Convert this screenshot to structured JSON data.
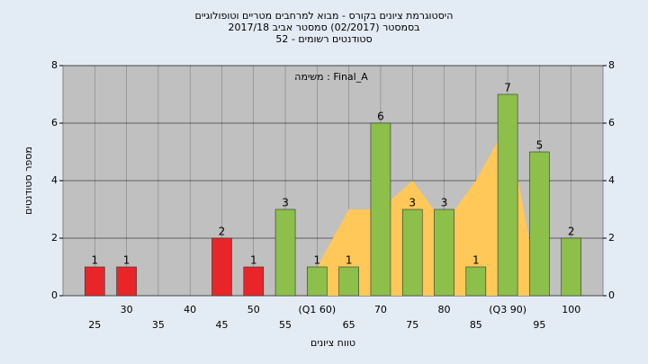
{
  "chart_data": {
    "type": "bar",
    "title": [
      "היסטוגרמת ציונים בקורס - מבוא למרחבים מטריים וטופולוגיים",
      "בסמסטר  (02/2017)  סמסטר אביב 2017/18",
      "סטודנטים רשומים - 52"
    ],
    "annotation": "משימה : Final_A",
    "x_label": "טווח ציונים",
    "y_label": "מספר סטודנטים",
    "categories": [
      "25",
      "30",
      "35",
      "40",
      "45",
      "50",
      "55",
      "(Q1 60)",
      "65",
      "70",
      "75",
      "80",
      "85",
      "(Q3 90)",
      "95",
      "100"
    ],
    "values": [
      1,
      1,
      0,
      0,
      2,
      1,
      3,
      1,
      1,
      6,
      3,
      3,
      1,
      7,
      5,
      2
    ],
    "colors": [
      "#e8262a",
      "#e8262a",
      "#e8262a",
      "#e8262a",
      "#e8262a",
      "#e8262a",
      "#8cc04a",
      "#8cc04a",
      "#8cc04a",
      "#8cc04a",
      "#8cc04a",
      "#8cc04a",
      "#8cc04a",
      "#8cc04a",
      "#8cc04a",
      "#8cc04a"
    ],
    "area_values": [
      null,
      null,
      null,
      null,
      null,
      null,
      null,
      1,
      3,
      3,
      4,
      2.5,
      4,
      6,
      0,
      null
    ],
    "area_color": "#ffc859",
    "ylim": [
      0,
      8
    ],
    "yticks": [
      0,
      2,
      4,
      6,
      8
    ],
    "grid": true
  }
}
